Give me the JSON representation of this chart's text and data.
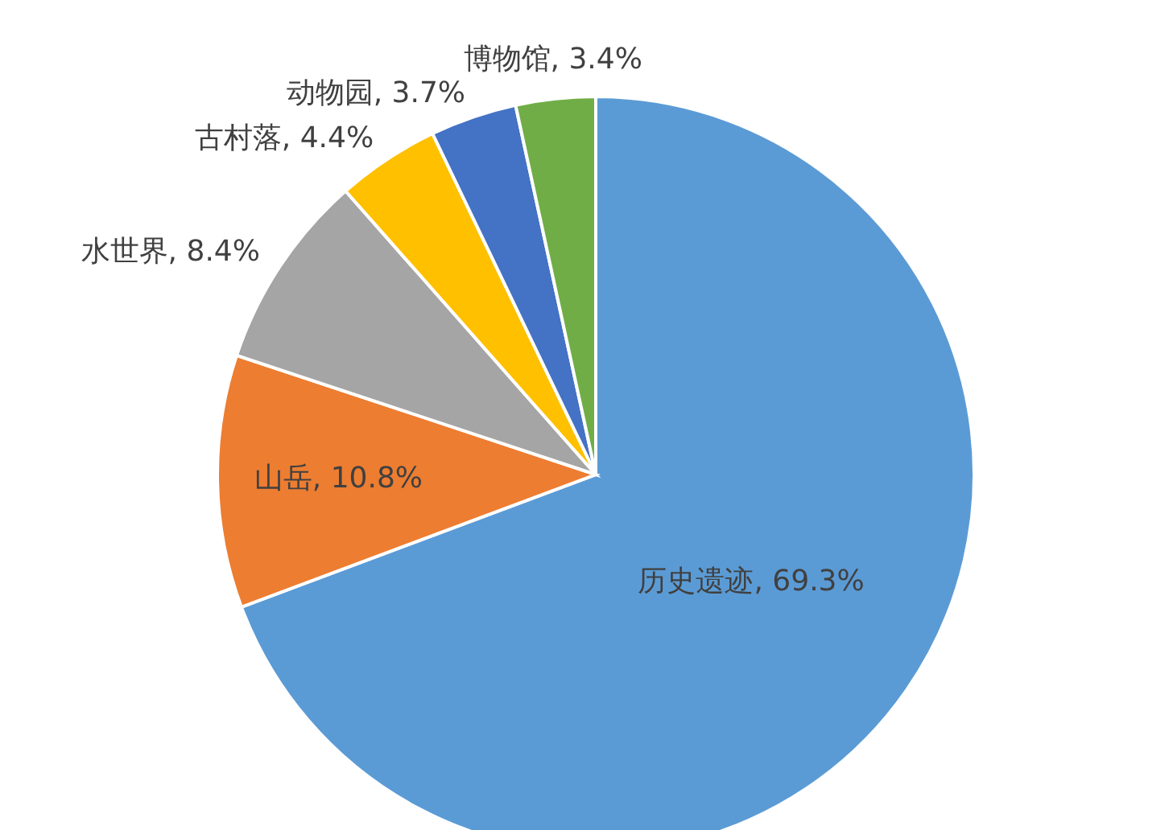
{
  "chart_data": {
    "type": "pie",
    "categories": [
      "历史遗迹",
      "山岳",
      "水世界",
      "古村落",
      "动物园",
      "博物馆"
    ],
    "values": [
      69.3,
      10.8,
      8.4,
      4.4,
      3.7,
      3.4
    ],
    "value_labels": [
      "69.3%",
      "10.8%",
      "8.4%",
      "4.4%",
      "3.7%",
      "3.4%"
    ],
    "colors": [
      "#5b9bd5",
      "#ed7d31",
      "#a5a5a5",
      "#ffc000",
      "#4472c4",
      "#70ad47"
    ]
  }
}
